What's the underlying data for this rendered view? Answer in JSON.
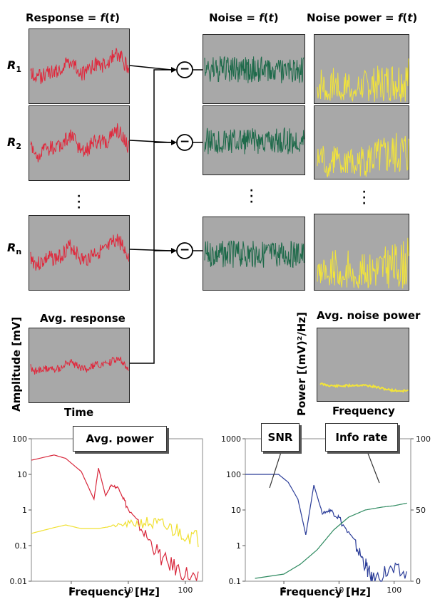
{
  "headers": {
    "response": "Response = ",
    "noise": "Noise = ",
    "noise_power": "Noise power = ",
    "f": "f",
    "t": "t"
  },
  "row_labels": {
    "r": "R",
    "s1": "1",
    "s2": "2",
    "sn": "n"
  },
  "avg_response": "Avg. response",
  "avg_noise_power": "Avg. noise power",
  "amplitude_axis": "Amplitude [mV]",
  "power_axis": "Power [(mV)²/Hz]",
  "time_label": "Time",
  "frequency_label": "Frequency",
  "subtract_symbol": "−",
  "chart_data": [
    {
      "type": "line",
      "callout": "Avg. power",
      "xlabel": "Frequency [Hz]",
      "xscale": "log",
      "yscale": "log",
      "xticks": [
        "1",
        "10",
        "100"
      ],
      "yticks": [
        "0.01",
        "0.1",
        "1",
        "10",
        "100"
      ],
      "series": [
        {
          "color": "#d8283c",
          "x": [
            0.2,
            0.5,
            0.8,
            1.5,
            2.5,
            3.0,
            4.0,
            5.0,
            7.0,
            10,
            20,
            40,
            80,
            180
          ],
          "y": [
            25,
            35,
            28,
            12,
            2,
            15,
            2.5,
            5,
            4,
            1,
            0.2,
            0.04,
            0.02,
            0.01
          ]
        },
        {
          "color": "#f0e030",
          "x": [
            0.2,
            0.5,
            0.8,
            1.5,
            3,
            5,
            10,
            20,
            40,
            80,
            180
          ],
          "y": [
            0.22,
            0.32,
            0.38,
            0.3,
            0.3,
            0.35,
            0.4,
            0.45,
            0.35,
            0.25,
            0.15
          ]
        }
      ]
    },
    {
      "type": "line",
      "callouts": [
        "SNR",
        "Info rate"
      ],
      "xlabel": "Frequency [Hz]",
      "xscale": "log",
      "yscale": "log",
      "xticks": [
        "1",
        "10",
        "100"
      ],
      "yticks": [
        "0.1",
        "1",
        "10",
        "100",
        "1000"
      ],
      "y2ticks": [
        "0",
        "50",
        "100"
      ],
      "series": [
        {
          "color": "#2a3c98",
          "axis": "left",
          "x": [
            0.2,
            0.8,
            1.2,
            1.8,
            2.5,
            3.5,
            5,
            7,
            10,
            20,
            30,
            40,
            80,
            180
          ],
          "y": [
            100,
            100,
            60,
            20,
            2,
            50,
            8,
            10,
            6,
            1,
            0.3,
            0.1,
            0.2,
            0.15
          ]
        },
        {
          "color": "#2e8a60",
          "axis": "right",
          "x": [
            0.3,
            1,
            2,
            4,
            8,
            15,
            30,
            60,
            100,
            180
          ],
          "y": [
            2,
            5,
            12,
            22,
            36,
            45,
            50,
            52,
            53,
            55
          ]
        }
      ]
    }
  ]
}
